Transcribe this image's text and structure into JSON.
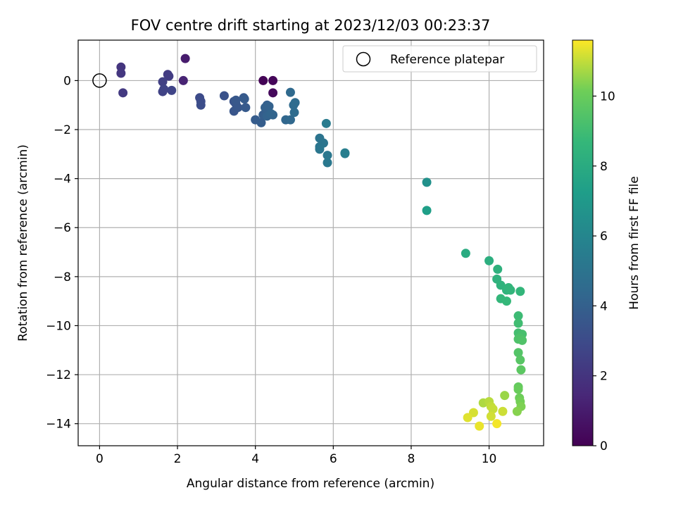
{
  "chart_data": {
    "type": "scatter",
    "title": "FOV centre drift starting at 2023/12/03 00:23:37",
    "xlabel": "Angular distance from reference (arcmin)",
    "ylabel": "Rotation from reference (arcmin)",
    "xlim": [
      -0.55,
      11.4
    ],
    "ylim": [
      -14.9,
      1.65
    ],
    "x_ticks": [
      0,
      2,
      4,
      6,
      8,
      10
    ],
    "x_tick_labels": [
      "0",
      "2",
      "4",
      "6",
      "8",
      "10"
    ],
    "y_ticks": [
      0,
      -2,
      -4,
      -6,
      -8,
      -10,
      -12,
      -14
    ],
    "y_tick_labels": [
      "0",
      "−2",
      "−4",
      "−6",
      "−8",
      "−10",
      "−12",
      "−14"
    ],
    "grid": true,
    "legend": {
      "position": "top-right",
      "entries": [
        "Reference platepar"
      ]
    },
    "reference_point": {
      "x": 0,
      "y": 0,
      "label": "Reference platepar"
    },
    "colorbar": {
      "label": "Hours from first FF file",
      "colormap": "viridis",
      "range": [
        0,
        11.6
      ],
      "ticks": [
        0,
        2,
        4,
        6,
        8,
        10
      ],
      "tick_labels": [
        "0",
        "2",
        "4",
        "6",
        "8",
        "10"
      ]
    },
    "points": [
      {
        "x": 4.2,
        "y": 0.0,
        "h": 0.1
      },
      {
        "x": 4.45,
        "y": 0.0,
        "h": 0.2
      },
      {
        "x": 4.45,
        "y": -0.5,
        "h": 0.3
      },
      {
        "x": 2.2,
        "y": 0.9,
        "h": 1.0
      },
      {
        "x": 2.15,
        "y": 0.0,
        "h": 1.3
      },
      {
        "x": 0.55,
        "y": 0.55,
        "h": 2.0
      },
      {
        "x": 0.55,
        "y": 0.3,
        "h": 2.1
      },
      {
        "x": 0.6,
        "y": -0.5,
        "h": 2.2
      },
      {
        "x": 1.75,
        "y": 0.25,
        "h": 2.3
      },
      {
        "x": 1.78,
        "y": 0.18,
        "h": 2.35
      },
      {
        "x": 1.62,
        "y": -0.05,
        "h": 2.5
      },
      {
        "x": 1.62,
        "y": -0.45,
        "h": 2.6
      },
      {
        "x": 1.65,
        "y": -0.35,
        "h": 2.65
      },
      {
        "x": 1.85,
        "y": -0.4,
        "h": 2.7
      },
      {
        "x": 2.57,
        "y": -0.7,
        "h": 3.0
      },
      {
        "x": 2.6,
        "y": -0.85,
        "h": 3.05
      },
      {
        "x": 2.6,
        "y": -1.0,
        "h": 3.1
      },
      {
        "x": 3.2,
        "y": -0.62,
        "h": 3.3
      },
      {
        "x": 3.45,
        "y": -0.85,
        "h": 3.4
      },
      {
        "x": 3.5,
        "y": -0.95,
        "h": 3.45
      },
      {
        "x": 3.45,
        "y": -1.25,
        "h": 3.5
      },
      {
        "x": 3.55,
        "y": -1.1,
        "h": 3.55
      },
      {
        "x": 3.5,
        "y": -0.8,
        "h": 3.6
      },
      {
        "x": 3.7,
        "y": -0.7,
        "h": 3.65
      },
      {
        "x": 3.75,
        "y": -1.1,
        "h": 3.7
      },
      {
        "x": 3.72,
        "y": -0.75,
        "h": 3.75
      },
      {
        "x": 4.0,
        "y": -1.6,
        "h": 3.8
      },
      {
        "x": 4.15,
        "y": -1.72,
        "h": 3.85
      },
      {
        "x": 4.2,
        "y": -1.4,
        "h": 3.9
      },
      {
        "x": 4.3,
        "y": -1.0,
        "h": 3.95
      },
      {
        "x": 4.25,
        "y": -1.1,
        "h": 4.0
      },
      {
        "x": 4.35,
        "y": -1.05,
        "h": 4.05
      },
      {
        "x": 4.3,
        "y": -1.45,
        "h": 4.1
      },
      {
        "x": 4.45,
        "y": -1.4,
        "h": 4.15
      },
      {
        "x": 4.4,
        "y": -1.35,
        "h": 4.2
      },
      {
        "x": 4.78,
        "y": -1.6,
        "h": 4.3
      },
      {
        "x": 4.9,
        "y": -1.6,
        "h": 4.4
      },
      {
        "x": 4.9,
        "y": -0.48,
        "h": 4.45
      },
      {
        "x": 4.98,
        "y": -1.0,
        "h": 4.5
      },
      {
        "x": 5.0,
        "y": -1.3,
        "h": 4.55
      },
      {
        "x": 5.02,
        "y": -0.9,
        "h": 4.6
      },
      {
        "x": 5.65,
        "y": -2.35,
        "h": 5.0
      },
      {
        "x": 5.75,
        "y": -2.55,
        "h": 5.05
      },
      {
        "x": 5.65,
        "y": -2.7,
        "h": 5.1
      },
      {
        "x": 5.65,
        "y": -2.8,
        "h": 5.15
      },
      {
        "x": 5.85,
        "y": -3.05,
        "h": 5.2
      },
      {
        "x": 5.85,
        "y": -3.35,
        "h": 5.25
      },
      {
        "x": 5.82,
        "y": -1.75,
        "h": 5.4
      },
      {
        "x": 6.3,
        "y": -2.98,
        "h": 5.5
      },
      {
        "x": 6.3,
        "y": -2.95,
        "h": 5.55
      },
      {
        "x": 8.4,
        "y": -4.15,
        "h": 6.6
      },
      {
        "x": 8.4,
        "y": -5.3,
        "h": 7.3
      },
      {
        "x": 9.4,
        "y": -7.05,
        "h": 8.0
      },
      {
        "x": 10.0,
        "y": -7.35,
        "h": 8.2
      },
      {
        "x": 10.22,
        "y": -7.7,
        "h": 8.3
      },
      {
        "x": 10.2,
        "y": -8.1,
        "h": 8.35
      },
      {
        "x": 10.3,
        "y": -8.35,
        "h": 8.4
      },
      {
        "x": 10.45,
        "y": -8.55,
        "h": 8.45
      },
      {
        "x": 10.5,
        "y": -8.45,
        "h": 8.5
      },
      {
        "x": 10.55,
        "y": -8.55,
        "h": 8.55
      },
      {
        "x": 10.8,
        "y": -8.6,
        "h": 8.6
      },
      {
        "x": 10.3,
        "y": -8.9,
        "h": 8.65
      },
      {
        "x": 10.45,
        "y": -9.0,
        "h": 8.7
      },
      {
        "x": 10.75,
        "y": -9.6,
        "h": 8.9
      },
      {
        "x": 10.75,
        "y": -9.9,
        "h": 9.0
      },
      {
        "x": 10.75,
        "y": -10.3,
        "h": 9.1
      },
      {
        "x": 10.85,
        "y": -10.35,
        "h": 9.2
      },
      {
        "x": 10.78,
        "y": -10.5,
        "h": 9.3
      },
      {
        "x": 10.75,
        "y": -10.55,
        "h": 9.35
      },
      {
        "x": 10.85,
        "y": -10.6,
        "h": 9.4
      },
      {
        "x": 10.75,
        "y": -11.1,
        "h": 9.5
      },
      {
        "x": 10.8,
        "y": -11.4,
        "h": 9.6
      },
      {
        "x": 10.82,
        "y": -11.8,
        "h": 9.7
      },
      {
        "x": 10.75,
        "y": -12.5,
        "h": 9.9
      },
      {
        "x": 10.75,
        "y": -12.6,
        "h": 10.0
      },
      {
        "x": 10.78,
        "y": -12.95,
        "h": 10.1
      },
      {
        "x": 10.8,
        "y": -13.1,
        "h": 10.2
      },
      {
        "x": 10.82,
        "y": -13.3,
        "h": 10.3
      },
      {
        "x": 10.72,
        "y": -13.5,
        "h": 10.4
      },
      {
        "x": 10.4,
        "y": -12.85,
        "h": 10.6
      },
      {
        "x": 9.85,
        "y": -13.15,
        "h": 10.8
      },
      {
        "x": 10.0,
        "y": -13.1,
        "h": 10.9
      },
      {
        "x": 10.05,
        "y": -13.3,
        "h": 11.0
      },
      {
        "x": 10.1,
        "y": -13.4,
        "h": 11.05
      },
      {
        "x": 10.35,
        "y": -13.5,
        "h": 11.1
      },
      {
        "x": 10.05,
        "y": -13.7,
        "h": 11.15
      },
      {
        "x": 9.6,
        "y": -13.55,
        "h": 11.2
      },
      {
        "x": 9.45,
        "y": -13.75,
        "h": 11.3
      },
      {
        "x": 9.75,
        "y": -14.1,
        "h": 11.4
      },
      {
        "x": 10.2,
        "y": -14.0,
        "h": 11.5
      }
    ]
  }
}
